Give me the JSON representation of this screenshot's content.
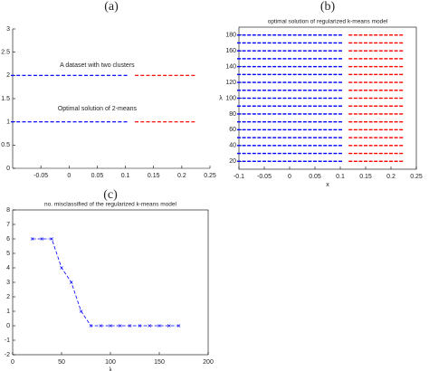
{
  "chart_data": [
    {
      "type": "scatter",
      "panel_label": "(a)",
      "xlim": [
        -0.1,
        0.25
      ],
      "xticks": [
        -0.05,
        0,
        0.05,
        0.1,
        0.15,
        0.2,
        0.25
      ],
      "ylim": [
        0,
        3
      ],
      "yticks": [
        0,
        0.5,
        1,
        1.5,
        2,
        2.5,
        3
      ],
      "annotations": [
        {
          "text": "A dataset with two clusters",
          "x": 0.05,
          "y": 2.22
        },
        {
          "text": "Optimal solution of 2-means",
          "x": 0.05,
          "y": 1.28
        }
      ],
      "series": [
        {
          "color": "#0000ff",
          "y": 2,
          "x": [
            -0.1,
            -0.09,
            -0.08,
            -0.07,
            -0.06,
            -0.05,
            -0.04,
            -0.03,
            -0.02,
            -0.01,
            0,
            0.01,
            0.02,
            0.03,
            0.04,
            0.05,
            0.06,
            0.07,
            0.08,
            0.09,
            0.1
          ]
        },
        {
          "color": "#ff0000",
          "y": 2,
          "x": [
            0.12,
            0.13,
            0.14,
            0.15,
            0.16,
            0.17,
            0.18,
            0.19,
            0.2,
            0.21,
            0.22
          ]
        },
        {
          "color": "#0000ff",
          "y": 1,
          "x": [
            -0.1,
            -0.09,
            -0.08,
            -0.07,
            -0.06,
            -0.05,
            -0.04,
            -0.03,
            -0.02,
            -0.01,
            0,
            0.01,
            0.02,
            0.03,
            0.04,
            0.05,
            0.06,
            0.07,
            0.08,
            0.09,
            0.1
          ]
        },
        {
          "color": "#ff0000",
          "y": 1,
          "x": [
            0.12,
            0.13,
            0.14,
            0.15,
            0.16,
            0.17,
            0.18,
            0.19,
            0.2,
            0.21,
            0.22
          ]
        }
      ]
    },
    {
      "type": "rows",
      "panel_label": "(b)",
      "title": "optimal solution of regularized k-means model",
      "x_label": "x",
      "y_label": "λ",
      "xlim": [
        -0.1,
        0.25
      ],
      "xticks": [
        -0.1,
        -0.05,
        0,
        0.05,
        0.1,
        0.15,
        0.2,
        0.25
      ],
      "ylim": [
        10,
        190
      ],
      "yticks": [
        20,
        40,
        60,
        80,
        100,
        120,
        140,
        160,
        180
      ],
      "rows": [
        20,
        30,
        40,
        50,
        60,
        70,
        80,
        90,
        100,
        110,
        120,
        130,
        140,
        150,
        160,
        170,
        180
      ],
      "series": [
        {
          "color": "#0000ff",
          "x": [
            -0.1,
            -0.09,
            -0.08,
            -0.07,
            -0.06,
            -0.05,
            -0.04,
            -0.03,
            -0.02,
            -0.01,
            0,
            0.01,
            0.02,
            0.03,
            0.04,
            0.05,
            0.06,
            0.07,
            0.08,
            0.09,
            0.1
          ]
        },
        {
          "color": "#ff0000",
          "x": [
            0.12,
            0.13,
            0.14,
            0.15,
            0.16,
            0.17,
            0.18,
            0.19,
            0.2,
            0.21,
            0.22
          ]
        }
      ]
    },
    {
      "type": "line",
      "panel_label": "(c)",
      "title": "no. misclassified of the regularized k-means model",
      "x_label": "λ",
      "xlim": [
        0,
        200
      ],
      "xticks": [
        0,
        50,
        100,
        150,
        200
      ],
      "ylim": [
        -2,
        8
      ],
      "yticks": [
        -2,
        -1,
        0,
        1,
        2,
        3,
        4,
        5,
        6,
        7,
        8
      ],
      "color": "#0000ff",
      "x": [
        20,
        30,
        40,
        50,
        60,
        70,
        80,
        90,
        100,
        110,
        120,
        130,
        140,
        150,
        160,
        170
      ],
      "values": [
        6,
        6,
        6,
        4,
        3,
        1,
        0,
        0,
        0,
        0,
        0,
        0,
        0,
        0,
        0,
        0
      ]
    }
  ]
}
